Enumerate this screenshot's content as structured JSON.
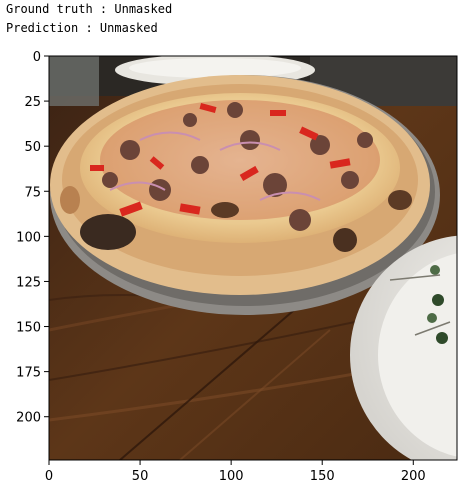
{
  "output": {
    "ground_truth_line": "Ground truth : Unmasked",
    "prediction_line": "Prediction : Unmasked"
  },
  "plot": {
    "image_description": "pizza-photo",
    "x_ticks": [
      "0",
      "50",
      "100",
      "150",
      "200"
    ],
    "y_ticks": [
      "0",
      "25",
      "50",
      "75",
      "100",
      "125",
      "150",
      "175",
      "200"
    ],
    "x_tick_values": [
      0,
      50,
      100,
      150,
      200
    ],
    "y_tick_values": [
      0,
      25,
      50,
      75,
      100,
      125,
      150,
      175,
      200
    ],
    "extent": [
      0,
      224
    ],
    "colors": {
      "wood": "#5a3418",
      "wood_light": "#7a4a26",
      "crust": "#e2bd8c",
      "sauce": "#b8402a",
      "cheese": "#f1dcae",
      "sausage": "#6b4438",
      "pepper": "#d9271e",
      "plate": "#ecebe6",
      "pan": "#8d8a86"
    }
  }
}
